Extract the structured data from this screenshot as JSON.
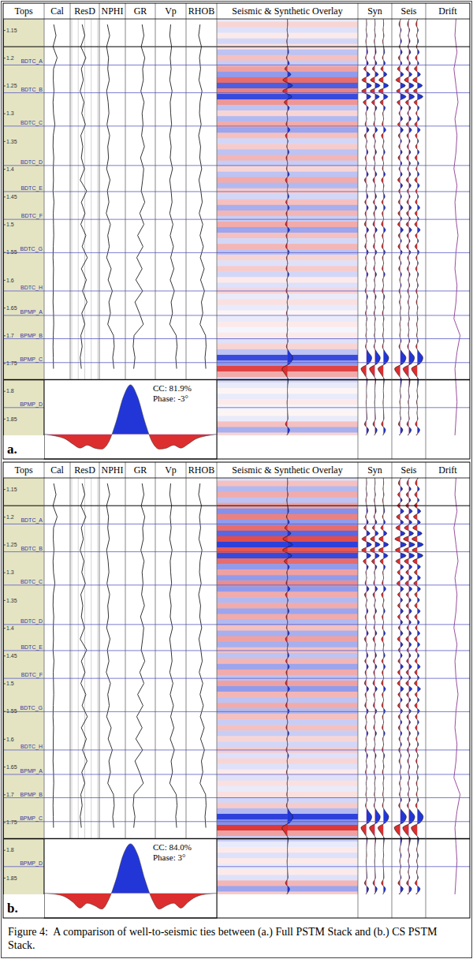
{
  "chart_data": {
    "type": "well_tie",
    "columns": [
      "Tops",
      "Cal",
      "ResD",
      "NPHI",
      "GR",
      "Vp",
      "RHOB",
      "Seismic & Synthetic Overlay",
      "Syn",
      "Seis",
      "Drift"
    ],
    "ylim": [
      1.13,
      1.88
    ],
    "yticks": [
      1.15,
      1.2,
      1.25,
      1.3,
      1.35,
      1.4,
      1.45,
      1.5,
      1.55,
      1.6,
      1.65,
      1.7,
      1.75,
      1.8,
      1.85
    ],
    "tick_labels": "y",
    "window": [
      1.18,
      1.78
    ],
    "tops": [
      {
        "name": "BDTC_A",
        "time": 1.213
      },
      {
        "name": "BDTC_B",
        "time": 1.263
      },
      {
        "name": "BDTC_C",
        "time": 1.323
      },
      {
        "name": "BDTC_D",
        "time": 1.394
      },
      {
        "name": "BDTC_E",
        "time": 1.441
      },
      {
        "name": "BDTC_F",
        "time": 1.491
      },
      {
        "name": "BDTC_G",
        "time": 1.551
      },
      {
        "name": "BDTC_H",
        "time": 1.62
      },
      {
        "name": "BPMP_A",
        "time": 1.664
      },
      {
        "name": "BPMP_B",
        "time": 1.706
      },
      {
        "name": "BPMP_C",
        "time": 1.749
      },
      {
        "name": "BPMP_D",
        "time": 1.83
      }
    ],
    "log_time": [
      1.14,
      1.16,
      1.18,
      1.2,
      1.22,
      1.24,
      1.26,
      1.28,
      1.3,
      1.32,
      1.34,
      1.36,
      1.38,
      1.4,
      1.42,
      1.44,
      1.46,
      1.48,
      1.5,
      1.52,
      1.54,
      1.56,
      1.58,
      1.6,
      1.62,
      1.64,
      1.66,
      1.68,
      1.7,
      1.72,
      1.74,
      1.76
    ],
    "logs": [
      {
        "color": "#000000",
        "xlim": [
          6,
          16
        ],
        "values": [
          9.5,
          10.5,
          9.2,
          11,
          9.4,
          9.3,
          9.6,
          9.2,
          9.4,
          10,
          9.3,
          9.2,
          9.5,
          9.3,
          9.4,
          9.2,
          9.6,
          9.3,
          9.4,
          9.5,
          9.3,
          9.2,
          9.4,
          9.3,
          9.3,
          9.2,
          9.4,
          9.5,
          9.3,
          9.2,
          9.3,
          9.4
        ]
      },
      {
        "color": "#000000",
        "log": true,
        "grid": true,
        "xlim": [
          0.2,
          2000
        ],
        "xticks": [
          0.2,
          2,
          20,
          200,
          2000
        ],
        "values": [
          8,
          20,
          5,
          30,
          6,
          12,
          4,
          15,
          7,
          25,
          5,
          10,
          6,
          18,
          4,
          40,
          6,
          22,
          5,
          30,
          8,
          50,
          6,
          35,
          9,
          45,
          7,
          20,
          5,
          8,
          4,
          6
        ]
      },
      {
        "color": "#000000",
        "xlim": [
          0.45,
          -0.15
        ],
        "values": [
          0.28,
          0.22,
          0.3,
          0.25,
          0.27,
          0.23,
          0.3,
          0.26,
          0.24,
          0.29,
          0.22,
          0.27,
          0.25,
          0.3,
          0.21,
          0.28,
          0.24,
          0.31,
          0.2,
          0.27,
          0.23,
          0.3,
          0.18,
          0.26,
          0.15,
          0.24,
          0.2,
          0.27,
          0.12,
          0.1,
          0.14,
          0.11
        ]
      },
      {
        "color": "#000000",
        "xlim": [
          0,
          150
        ],
        "values": [
          85,
          95,
          80,
          100,
          88,
          92,
          78,
          96,
          85,
          90,
          82,
          98,
          76,
          94,
          88,
          80,
          100,
          72,
          95,
          60,
          90,
          55,
          85,
          50,
          88,
          45,
          70,
          92,
          40,
          35,
          45,
          38
        ]
      },
      {
        "color": "#000000",
        "xlim": [
          1500,
          4500
        ],
        "values": [
          3000,
          2900,
          3100,
          2950,
          3050,
          2900,
          3150,
          2950,
          3000,
          3100,
          2900,
          3050,
          2950,
          3200,
          2900,
          3050,
          3150,
          2900,
          3250,
          2950,
          3300,
          3000,
          3350,
          2950,
          3400,
          3050,
          3200,
          2900,
          3600,
          3700,
          3550,
          3650
        ]
      },
      {
        "color": "#000000",
        "xlim": [
          1.95,
          2.95
        ],
        "values": [
          2.4,
          2.35,
          2.45,
          2.38,
          2.42,
          2.36,
          2.47,
          2.4,
          2.38,
          2.44,
          2.35,
          2.42,
          2.39,
          2.46,
          2.36,
          2.43,
          2.48,
          2.37,
          2.5,
          2.4,
          2.52,
          2.41,
          2.55,
          2.42,
          2.56,
          2.45,
          2.5,
          2.4,
          2.6,
          2.62,
          2.58,
          2.61
        ]
      }
    ],
    "trace_time": [
      1.13,
      1.14,
      1.15,
      1.16,
      1.17,
      1.18,
      1.19,
      1.2,
      1.21,
      1.22,
      1.23,
      1.24,
      1.25,
      1.26,
      1.27,
      1.28,
      1.29,
      1.3,
      1.31,
      1.32,
      1.33,
      1.34,
      1.35,
      1.36,
      1.37,
      1.38,
      1.39,
      1.4,
      1.41,
      1.42,
      1.43,
      1.44,
      1.45,
      1.46,
      1.47,
      1.48,
      1.49,
      1.5,
      1.51,
      1.52,
      1.53,
      1.54,
      1.55,
      1.56,
      1.57,
      1.58,
      1.59,
      1.6,
      1.61,
      1.62,
      1.63,
      1.64,
      1.65,
      1.66,
      1.67,
      1.68,
      1.69,
      1.7,
      1.71,
      1.72,
      1.73,
      1.74,
      1.75,
      1.76,
      1.77,
      1.78,
      1.79,
      1.8,
      1.81,
      1.82,
      1.83,
      1.84,
      1.85,
      1.86,
      1.87,
      1.88
    ],
    "amplitude_lim": [
      -1,
      1
    ],
    "synthetic": [
      0,
      0.05,
      -0.05,
      0.1,
      -0.1,
      0.05,
      0.2,
      -0.15,
      0.3,
      -0.4,
      0.55,
      -0.7,
      0.8,
      -0.75,
      0.7,
      -0.5,
      0.3,
      -0.1,
      0.05,
      -0.2,
      0.4,
      -0.3,
      0.1,
      -0.1,
      0.25,
      -0.2,
      0.05,
      -0.15,
      0.3,
      -0.3,
      0.1,
      -0.05,
      0.25,
      -0.25,
      0.3,
      -0.2,
      0.05,
      -0.3,
      0.35,
      -0.2,
      0.05,
      -0.25,
      0.3,
      -0.15,
      0.05,
      -0.2,
      0.25,
      -0.1,
      0.05,
      -0.2,
      0.2,
      -0.05,
      0.1,
      -0.15,
      0.1,
      -0.05,
      0.05,
      -0.1,
      0.1,
      -0.15,
      0.3,
      0.85,
      0.45,
      -0.85,
      -0.35,
      0.15,
      0.05,
      0,
      0.05,
      -0.05,
      0,
      0.05,
      0.1,
      -0.3,
      0.35,
      -0.1
    ],
    "drift_time": [
      1.13,
      1.16,
      1.19,
      1.22,
      1.25,
      1.28,
      1.31,
      1.34,
      1.37,
      1.4,
      1.43,
      1.46,
      1.49,
      1.52,
      1.55,
      1.58,
      1.61,
      1.64,
      1.67,
      1.7,
      1.73,
      1.76,
      1.79,
      1.82,
      1.85,
      1.88
    ],
    "drift": {
      "color": "#9b4f9b",
      "xlim": [
        -20,
        20
      ],
      "values": [
        8,
        7,
        9,
        6,
        8,
        10,
        7,
        9,
        8,
        6,
        9,
        7,
        8,
        10,
        8,
        7,
        9,
        8,
        6,
        12,
        9,
        7,
        8,
        9,
        8,
        7
      ]
    },
    "wavelet_time": [
      -60,
      -55,
      -50,
      -45,
      -40,
      -35,
      -30,
      -25,
      -20,
      -15,
      -10,
      -5,
      0,
      5,
      10,
      15,
      20,
      25,
      30,
      35,
      40,
      45,
      50,
      55,
      60
    ],
    "wavelet_xlim": [
      -60,
      60
    ],
    "wavelet_ylim": [
      -0.5,
      1.1
    ],
    "panels": [
      {
        "label": "a.",
        "annotations": [
          "CC: 81.9%",
          "Phase: -3°"
        ],
        "seismic": [
          0.1,
          -0.2,
          0.15,
          -0.1,
          0.2,
          -0.15,
          0.3,
          -0.3,
          0.25,
          -0.45,
          0.5,
          -0.7,
          0.8,
          -0.6,
          0.9,
          -0.5,
          0.3,
          -0.2,
          0.35,
          -0.4,
          0.45,
          -0.3,
          0.2,
          -0.25,
          0.3,
          -0.35,
          0.25,
          -0.2,
          0.3,
          -0.4,
          0.35,
          -0.25,
          0.2,
          -0.3,
          0.4,
          -0.35,
          0.25,
          -0.4,
          0.45,
          -0.3,
          0.2,
          -0.35,
          0.3,
          -0.2,
          0.15,
          -0.25,
          0.2,
          -0.1,
          0.15,
          -0.2,
          0.1,
          -0.15,
          0.1,
          -0.05,
          0.1,
          -0.1,
          0.05,
          -0.1,
          0.15,
          -0.2,
          0.3,
          0.9,
          0.5,
          -0.9,
          -0.4,
          0.2,
          0.1,
          -0.05,
          0.1,
          -0.1,
          0.05,
          -0.05,
          0.1,
          -0.3,
          0.4,
          -0.2
        ],
        "wavelet": [
          0,
          -0.02,
          -0.05,
          -0.1,
          -0.2,
          -0.28,
          -0.22,
          -0.28,
          -0.3,
          -0.15,
          0.25,
          0.75,
          1,
          0.75,
          0.25,
          -0.15,
          -0.3,
          -0.28,
          -0.22,
          -0.28,
          -0.2,
          -0.1,
          -0.05,
          -0.02,
          0
        ]
      },
      {
        "label": "b.",
        "annotations": [
          "CC: 84.0%",
          "Phase: 3°"
        ],
        "seismic": [
          0.15,
          -0.3,
          0.35,
          -0.4,
          0.3,
          -0.45,
          0.55,
          -0.6,
          0.5,
          -0.7,
          0.75,
          -0.85,
          0.95,
          -0.8,
          0.9,
          -0.7,
          0.5,
          -0.45,
          0.5,
          -0.55,
          0.5,
          -0.4,
          0.35,
          -0.4,
          0.45,
          -0.4,
          0.35,
          -0.3,
          0.4,
          -0.45,
          0.4,
          -0.3,
          0.3,
          -0.35,
          0.45,
          -0.4,
          0.3,
          -0.45,
          0.5,
          -0.35,
          0.3,
          -0.4,
          0.35,
          -0.3,
          0.25,
          -0.3,
          0.25,
          -0.2,
          0.2,
          -0.25,
          0.15,
          -0.2,
          0.15,
          -0.1,
          0.15,
          -0.15,
          0.1,
          -0.15,
          0.2,
          -0.25,
          0.35,
          0.95,
          0.55,
          -0.95,
          -0.45,
          0.25,
          0.1,
          -0.1,
          0.15,
          -0.1,
          0.1,
          -0.1,
          0.15,
          -0.35,
          0.45,
          -0.25
        ],
        "wavelet": [
          0,
          -0.01,
          -0.03,
          -0.08,
          -0.18,
          -0.3,
          -0.2,
          -0.25,
          -0.32,
          -0.12,
          0.28,
          0.78,
          1,
          0.78,
          0.28,
          -0.12,
          -0.32,
          -0.25,
          -0.2,
          -0.3,
          -0.18,
          -0.08,
          -0.03,
          -0.01,
          0
        ]
      }
    ],
    "caption": "Figure 4:  A comparison of well-to-seismic ties between (a.) Full PSTM Stack and (b.) CS PSTM Stack."
  }
}
